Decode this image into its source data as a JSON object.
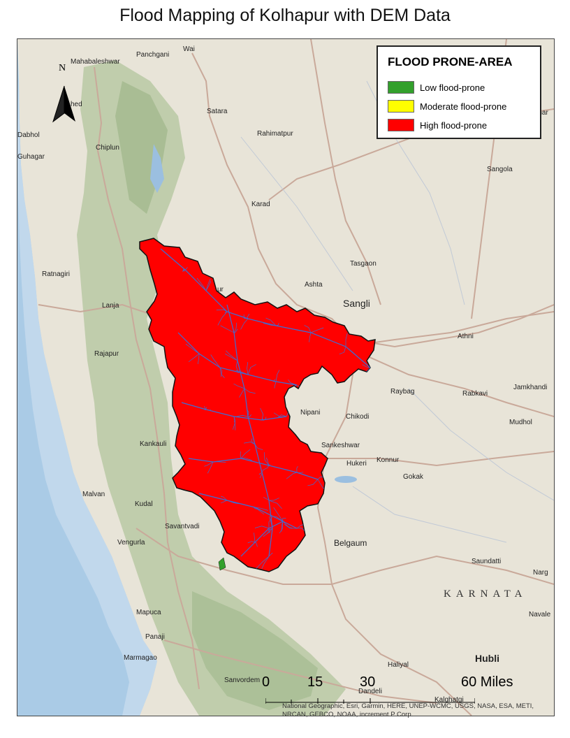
{
  "title": "Flood Mapping of Kolhapur with DEM Data",
  "legend": {
    "title": "FLOOD PRONE-AREA",
    "items": [
      {
        "label": "Low flood-prone",
        "color": "#33a02c"
      },
      {
        "label": "Moderate flood-prone",
        "color": "#ffff00"
      },
      {
        "label": "High flood-prone",
        "color": "#ff0000"
      }
    ]
  },
  "north_arrow": {
    "label": "N"
  },
  "scale": {
    "labels": [
      "0",
      "15",
      "30",
      "60 Miles"
    ]
  },
  "credits": "National Geographic, Esri, Garmin, HERE, UNEP-WCMC, USGS, NASA, ESA, METI, NRCAN, GEBCO, NOAA, increment P Corp.",
  "colors": {
    "sea": "#aacbe6",
    "land": "#e8e4d8",
    "hills": "#b9c9a4",
    "flood_high": "#ff0000",
    "river": "#3a6fd8",
    "road": "#c9a99a"
  },
  "places": [
    {
      "name": "Mahabaleshwar"
    },
    {
      "name": "Panchgani"
    },
    {
      "name": "Wai"
    },
    {
      "name": "Satara"
    },
    {
      "name": "Rahimatpur"
    },
    {
      "name": "Dabhol"
    },
    {
      "name": "Guhagar"
    },
    {
      "name": "Chiplun"
    },
    {
      "name": "Karad"
    },
    {
      "name": "Sangola"
    },
    {
      "name": "Pandhar"
    },
    {
      "name": "Ratnagiri"
    },
    {
      "name": "Tasgaon"
    },
    {
      "name": "Ashta"
    },
    {
      "name": "Sangli"
    },
    {
      "name": "Lanja"
    },
    {
      "name": "Athni"
    },
    {
      "name": "Rajapur"
    },
    {
      "name": "Raybag"
    },
    {
      "name": "Rabkavi"
    },
    {
      "name": "Jamkhandi"
    },
    {
      "name": "Nipani"
    },
    {
      "name": "Chikodi"
    },
    {
      "name": "Mudhol"
    },
    {
      "name": "Kankauli"
    },
    {
      "name": "Sankeshwar"
    },
    {
      "name": "Hukeri"
    },
    {
      "name": "Konnur"
    },
    {
      "name": "Gokak"
    },
    {
      "name": "Malvan"
    },
    {
      "name": "Kudal"
    },
    {
      "name": "Savantvadi"
    },
    {
      "name": "Vengurla"
    },
    {
      "name": "Belgaum"
    },
    {
      "name": "Saundatti"
    },
    {
      "name": "Narg"
    },
    {
      "name": "KARNATA"
    },
    {
      "name": "Mapuca"
    },
    {
      "name": "Panaji"
    },
    {
      "name": "Navale"
    },
    {
      "name": "Marmagao"
    },
    {
      "name": "Haliyal"
    },
    {
      "name": "Hubli"
    },
    {
      "name": "Sanvordem"
    },
    {
      "name": "Dandeli"
    },
    {
      "name": "Kalghatgi"
    },
    {
      "name": "hed"
    },
    {
      "name": "ur"
    }
  ]
}
